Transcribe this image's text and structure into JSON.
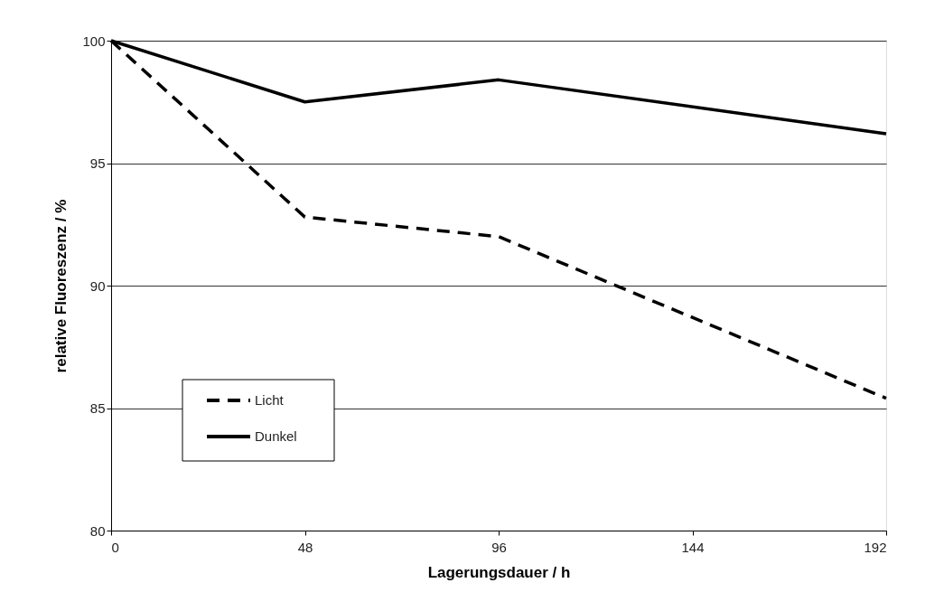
{
  "chart_data": {
    "type": "line",
    "xlabel": "Lagerungsdauer / h",
    "ylabel": "relative Fluoreszenz / %",
    "x": [
      0,
      48,
      96,
      192
    ],
    "series": [
      {
        "name": "Licht",
        "color": "#000000",
        "line_style": "dashed",
        "values": [
          100,
          92.8,
          92.0,
          85.4
        ]
      },
      {
        "name": "Dunkel",
        "color": "#000000",
        "line_style": "solid",
        "values": [
          100,
          97.5,
          98.4,
          96.2
        ]
      }
    ],
    "xlim": [
      0,
      192
    ],
    "xticks": [
      0,
      48,
      96,
      144,
      192
    ],
    "ylim": [
      80,
      100
    ],
    "yticks": [
      80,
      85,
      90,
      95,
      100
    ],
    "grid": "y",
    "legend": "bottom left",
    "marker": "none"
  }
}
